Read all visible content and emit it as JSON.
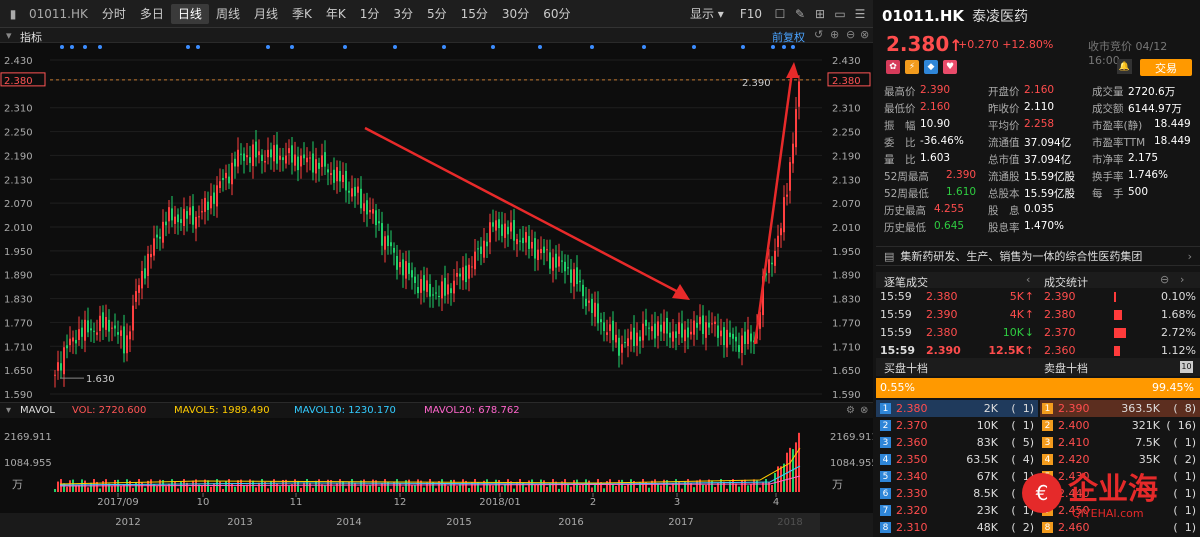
{
  "toolbar": {
    "code": "01011.HK",
    "periods": [
      "分时",
      "多日",
      "日线",
      "周线",
      "月线",
      "季K",
      "年K",
      "1分",
      "3分",
      "5分",
      "15分",
      "30分",
      "60分"
    ],
    "active": "日线",
    "display": "显示",
    "f10": "F10"
  },
  "chart": {
    "indicator_label": "指标",
    "fq_label": "前复权",
    "y_ticks": [
      "2.430",
      "2.380",
      "2.310",
      "2.250",
      "2.190",
      "2.130",
      "2.070",
      "2.010",
      "1.950",
      "1.890",
      "1.830",
      "1.770",
      "1.710",
      "1.650",
      "1.590"
    ],
    "current_line": "2.380",
    "high_label": "2.390",
    "low_label": "1.630",
    "x_ticks_month": [
      "2017/09",
      "10",
      "11",
      "12",
      "2018/01",
      "2",
      "3",
      "4"
    ],
    "x_ticks_year": [
      "2012",
      "2013",
      "2014",
      "2015",
      "2016",
      "2017",
      "2018"
    ]
  },
  "volume": {
    "title": "MAVOL",
    "vol": "VOL: 2720.600",
    "ma5": "MAVOL5: 1989.490",
    "ma10": "MAVOL10: 1230.170",
    "ma20": "MAVOL20: 678.762",
    "y1": "2169.911",
    "y2": "1084.955",
    "unit": "万"
  },
  "quote": {
    "code": "01011.HK",
    "name": "泰凌医药",
    "price": "2.380",
    "arrow": "↑",
    "change": "+0.270",
    "pct": "+12.80%",
    "status": "收市竞价 04/12 16:00",
    "trade_label": "交易"
  },
  "stats": [
    [
      [
        "最高价",
        "2.390",
        "red"
      ],
      [
        "开盘价",
        "2.160",
        "red"
      ],
      [
        "成交量",
        "2720.6万",
        "white"
      ]
    ],
    [
      [
        "最低价",
        "2.160",
        "red"
      ],
      [
        "昨收价",
        "2.110",
        "white"
      ],
      [
        "成交额",
        "6144.97万",
        "white"
      ]
    ],
    [
      [
        "振　幅",
        "10.90",
        "white"
      ],
      [
        "平均价",
        "2.258",
        "red"
      ],
      [
        "市盈率(静)",
        "18.449",
        "white"
      ]
    ],
    [
      [
        "委　比",
        "-36.46%",
        "white"
      ],
      [
        "流通值",
        "37.094亿",
        "white"
      ],
      [
        "市盈率TTM",
        "18.449",
        "white"
      ]
    ],
    [
      [
        "量　比",
        "1.603",
        "white"
      ],
      [
        "总市值",
        "37.094亿",
        "white"
      ],
      [
        "市净率",
        "2.175",
        "white"
      ]
    ],
    [
      [
        "52周最高",
        "2.390",
        "red"
      ],
      [
        "流通股",
        "15.59亿股",
        "white"
      ],
      [
        "换手率",
        "1.746%",
        "white"
      ]
    ],
    [
      [
        "52周最低",
        "1.610",
        "green"
      ],
      [
        "总股本",
        "15.59亿股",
        "white"
      ],
      [
        "每　手",
        "500",
        "white"
      ]
    ],
    [
      [
        "历史最高",
        "4.255",
        "red"
      ],
      [
        "股　息",
        "0.035",
        "white"
      ],
      [
        "",
        "",
        " "
      ]
    ],
    [
      [
        "历史最低",
        "0.645",
        "green"
      ],
      [
        "股息率",
        "1.470%",
        "white"
      ],
      [
        "",
        "",
        " "
      ]
    ]
  ],
  "description": "集新药研发、生产、销售为一体的综合性医药集团",
  "sections": {
    "ticks": "逐笔成交",
    "dist": "成交统计"
  },
  "ticks": [
    {
      "time": "15:59",
      "price": "2.380",
      "vol": "5K",
      "dir": "↑",
      "c": "red"
    },
    {
      "time": "15:59",
      "price": "2.390",
      "vol": "4K",
      "dir": "↑",
      "c": "red"
    },
    {
      "time": "15:59",
      "price": "2.380",
      "vol": "10K",
      "dir": "↓",
      "c": "green"
    },
    {
      "time": "15:59",
      "price": "2.390",
      "vol": "12.5K",
      "dir": "↑",
      "c": "red"
    }
  ],
  "dist": [
    {
      "price": "2.390",
      "pct": "0.10%",
      "bar": 0.02
    },
    {
      "price": "2.380",
      "pct": "1.68%",
      "bar": 0.2
    },
    {
      "price": "2.370",
      "pct": "2.72%",
      "bar": 0.3
    },
    {
      "price": "2.360",
      "pct": "1.12%",
      "bar": 0.15
    }
  ],
  "book_header": {
    "bid": "买盘十档",
    "ask": "卖盘十档",
    "count": "10"
  },
  "ratio": {
    "bid": "0.55%",
    "ask": "99.45%"
  },
  "bids": [
    [
      "2.380",
      "2K",
      "1"
    ],
    [
      "2.370",
      "10K",
      "1"
    ],
    [
      "2.360",
      "83K",
      "5"
    ],
    [
      "2.350",
      "63.5K",
      "4"
    ],
    [
      "2.340",
      "67K",
      "1"
    ],
    [
      "2.330",
      "8.5K",
      "4"
    ],
    [
      "2.320",
      "23K",
      "1"
    ],
    [
      "2.310",
      "48K",
      "2"
    ]
  ],
  "asks": [
    [
      "2.390",
      "363.5K",
      "8"
    ],
    [
      "2.400",
      "321K",
      "16"
    ],
    [
      "2.410",
      "7.5K",
      "1"
    ],
    [
      "2.420",
      "35K",
      "2"
    ],
    [
      "2.430",
      "",
      "1"
    ],
    [
      "2.440",
      "",
      "1"
    ],
    [
      "2.450",
      "",
      "1"
    ],
    [
      "2.460",
      "",
      "1"
    ]
  ],
  "watermark": {
    "title": "企业海",
    "url": "QIYEHAI.com"
  }
}
